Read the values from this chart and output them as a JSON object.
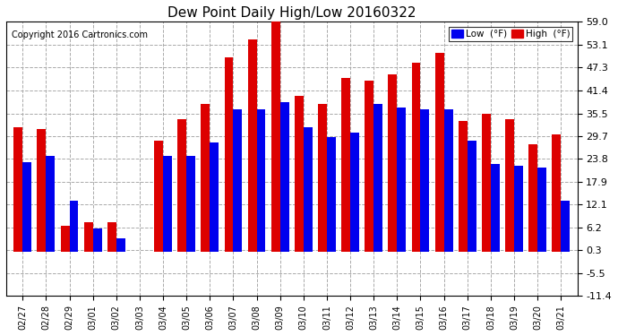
{
  "title": "Dew Point Daily High/Low 20160322",
  "copyright": "Copyright 2016 Cartronics.com",
  "legend_low": "Low  (°F)",
  "legend_high": "High  (°F)",
  "low_color": "#0000ee",
  "high_color": "#dd0000",
  "background_color": "#ffffff",
  "grid_color": "#aaaaaa",
  "ylim": [
    -11.4,
    59.0
  ],
  "yticks": [
    -11.4,
    -5.5,
    0.3,
    6.2,
    12.1,
    17.9,
    23.8,
    29.7,
    35.5,
    41.4,
    47.3,
    53.1,
    59.0
  ],
  "dates": [
    "02/27",
    "02/28",
    "02/29",
    "03/01",
    "03/02",
    "03/03",
    "03/04",
    "03/05",
    "03/06",
    "03/07",
    "03/08",
    "03/09",
    "03/10",
    "03/11",
    "03/12",
    "03/13",
    "03/14",
    "03/15",
    "03/16",
    "03/17",
    "03/18",
    "03/19",
    "03/20",
    "03/21"
  ],
  "high_values": [
    32.0,
    31.5,
    6.5,
    7.5,
    7.5,
    null,
    28.5,
    34.0,
    38.0,
    50.0,
    54.5,
    59.0,
    40.0,
    38.0,
    44.5,
    44.0,
    45.5,
    48.5,
    51.0,
    33.5,
    35.5,
    34.0,
    27.5,
    30.0
  ],
  "low_values": [
    23.0,
    24.5,
    13.0,
    6.0,
    3.5,
    null,
    24.5,
    24.5,
    28.0,
    36.5,
    36.5,
    38.5,
    32.0,
    29.5,
    30.5,
    38.0,
    37.0,
    36.5,
    36.5,
    28.5,
    22.5,
    22.0,
    21.5,
    13.0
  ]
}
